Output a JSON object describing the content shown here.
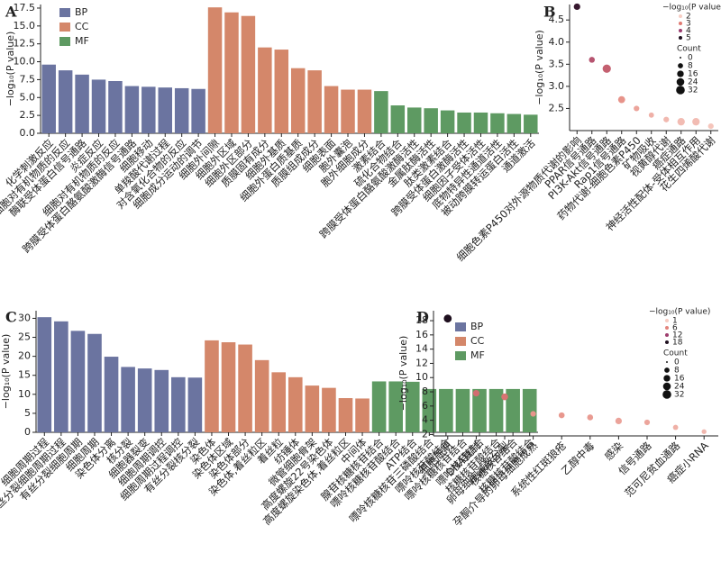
{
  "chart_data": [
    {
      "type": "bar",
      "panel": "A",
      "ylabel": "−log₁₀(P value)",
      "ylim": [
        0,
        18
      ],
      "yticks": [
        {
          "value": 0,
          "label": "0.0"
        },
        2.5,
        {
          "value": 5,
          "label": "5.0"
        },
        7.5,
        {
          "value": 10,
          "label": "10.0"
        },
        12.5,
        {
          "value": 15,
          "label": "15.0"
        },
        17.5
      ],
      "legend": "upper left",
      "series": [
        {
          "name": "BP",
          "color": "#6b74a0",
          "categories": [
            "化学刺激反应",
            "细胞对有机物质的反应",
            "酶联受体蛋白信号通路",
            "炎症反应",
            "细胞对有机物质的反应",
            "跨膜受体蛋白酪氨酸激酶信号通路",
            "细胞移动",
            "单羧酸代谢过程",
            "对含氧化合物的反应",
            "细胞成分运动的调节"
          ],
          "values": [
            9.6,
            8.8,
            8.2,
            7.5,
            7.3,
            6.6,
            6.5,
            6.4,
            6.3,
            6.2
          ]
        },
        {
          "name": "CC",
          "color": "#d4876a",
          "categories": [
            "细胞外间隙",
            "细胞外区域",
            "细胞外区部分",
            "质膜固有成分",
            "细胞外基质",
            "细胞外蛋白质基质",
            "质膜组成成分",
            "细胞表面",
            "胞外囊泡",
            "胞外细胞成分"
          ],
          "values": [
            17.6,
            16.9,
            16.4,
            12.0,
            11.7,
            9.1,
            8.8,
            6.6,
            6.1,
            6.1
          ]
        },
        {
          "name": "MF",
          "color": "#5e9a62",
          "categories": [
            "激素结合",
            "硫化合物结合",
            "跨膜受体蛋白酪氨酸激酶活性",
            "金属肽酶活性",
            "肽类激素结合",
            "跨膜受体蛋白激酶活性",
            "细胞因子受体活性",
            "底物特异性通道活性",
            "被动跨膜转运蛋白活性",
            "通道激活"
          ],
          "values": [
            5.9,
            3.9,
            3.6,
            3.5,
            3.2,
            2.9,
            2.9,
            2.8,
            2.7,
            2.6
          ]
        }
      ]
    },
    {
      "type": "bubble",
      "panel": "B",
      "ylabel": "−log₁₀(P value)",
      "ylim": [
        2.0,
        4.85
      ],
      "yticks": [
        2.5,
        {
          "value": 3,
          "label": "3.0"
        },
        3.5,
        {
          "value": 4,
          "label": "4.0"
        },
        4.5
      ],
      "categories": [
        "细胞色素P450对外源物质代谢的影响",
        "PPAR信号通路",
        "PI3K-Akt信号通路",
        "Rap1信号通路",
        "药物代谢-细胞色素P450",
        "矿物吸收",
        "视黄醇代谢",
        "癌症通路",
        "神经活性配体-受体相互作用",
        "花生四烯酸代谢"
      ],
      "values": [
        4.8,
        3.6,
        3.4,
        2.7,
        2.5,
        2.35,
        2.25,
        2.2,
        2.2,
        2.1
      ],
      "sizes": [
        8,
        6,
        16,
        10,
        5,
        4,
        5,
        12,
        12,
        5
      ],
      "colormap": [
        "#f7cdc3",
        "#e07a72",
        "#9a3a6e",
        "#1e0f1e"
      ],
      "color_title": "−log₁₀(P value)",
      "color_ticks": [
        2,
        3,
        4,
        5
      ],
      "size_title": "Count",
      "size_ticks": [
        0,
        8,
        16,
        24,
        32
      ]
    },
    {
      "type": "bar",
      "panel": "C",
      "ylabel": "−log₁₀(P value)",
      "ylim": [
        0,
        32
      ],
      "yticks": [
        0,
        5,
        10,
        15,
        20,
        25,
        30
      ],
      "legend": "upper right",
      "series": [
        {
          "name": "BP",
          "color": "#6b74a0",
          "categories": [
            "细胞周期过程",
            "有丝分裂细胞周期过程",
            "有丝分裂细胞周期",
            "细胞周期",
            "染色体分离",
            "核分裂",
            "细胞器裂变",
            "细胞周期调控",
            "细胞周期过程调控",
            "有丝分裂核分裂"
          ],
          "values": [
            30.3,
            29.2,
            26.7,
            25.9,
            19.9,
            17.2,
            16.8,
            16.4,
            14.5,
            14.4
          ]
        },
        {
          "name": "CC",
          "color": "#d4876a",
          "categories": [
            "染色体",
            "染色体区域",
            "染色体部分",
            "染色体,着丝粒区",
            "着丝粒",
            "纺锤体",
            "微管细胞骨架",
            "高度螺旋22号染色体",
            "高度螺旋染色体,着丝粒区",
            "中间体"
          ],
          "values": [
            24.2,
            23.7,
            23.1,
            19.0,
            15.8,
            14.5,
            12.3,
            11.7,
            9.0,
            8.9
          ]
        },
        {
          "name": "MF",
          "color": "#5e9a62",
          "categories": [
            "腺苷核糖核苷结合",
            "嘌呤核糖核苷酸结合",
            "ATP结合",
            "嘌呤核糖核苷三磷酸结合",
            "嘌呤核苷酸结合",
            "嘌呤核糖核苷结合",
            "嘌呤核苷结合",
            "核糖核苷酸结合",
            "核糖核苷结合",
            "核糖核苷酸结合"
          ],
          "values": [
            13.4,
            13.4,
            13.3,
            11.4,
            11.4,
            11.4,
            11.4,
            11.4,
            11.4,
            11.4
          ]
        }
      ]
    },
    {
      "type": "bubble",
      "panel": "D",
      "ylabel": "−log₁₀(P value)",
      "ylim": [
        1.8,
        19.4
      ],
      "yticks": [
        2,
        4,
        6,
        8,
        10,
        12,
        14,
        16,
        18
      ],
      "categories": [
        "细胞周期",
        "DNA复制",
        "卵母细胞减数分裂",
        "孕酮介导的卵母细胞成熟",
        "系统性红斑狼疮",
        "乙醇中毒",
        "感染",
        "信号通路",
        "范可尼贫血通路",
        "癌症小RNA"
      ],
      "values": [
        18.3,
        7.8,
        7.3,
        4.9,
        4.7,
        4.4,
        3.9,
        3.7,
        3.0,
        2.4
      ],
      "sizes": [
        14,
        8,
        9,
        5,
        6,
        6,
        8,
        5,
        4,
        3
      ],
      "colormap": [
        "#f7cdc3",
        "#e07a72",
        "#9a3a6e",
        "#1e0f1e"
      ],
      "color_title": "−log₁₀(P value)",
      "color_ticks": [
        1,
        6,
        12,
        18
      ],
      "size_title": "Count",
      "size_ticks": [
        0,
        8,
        16,
        24,
        32
      ]
    }
  ]
}
